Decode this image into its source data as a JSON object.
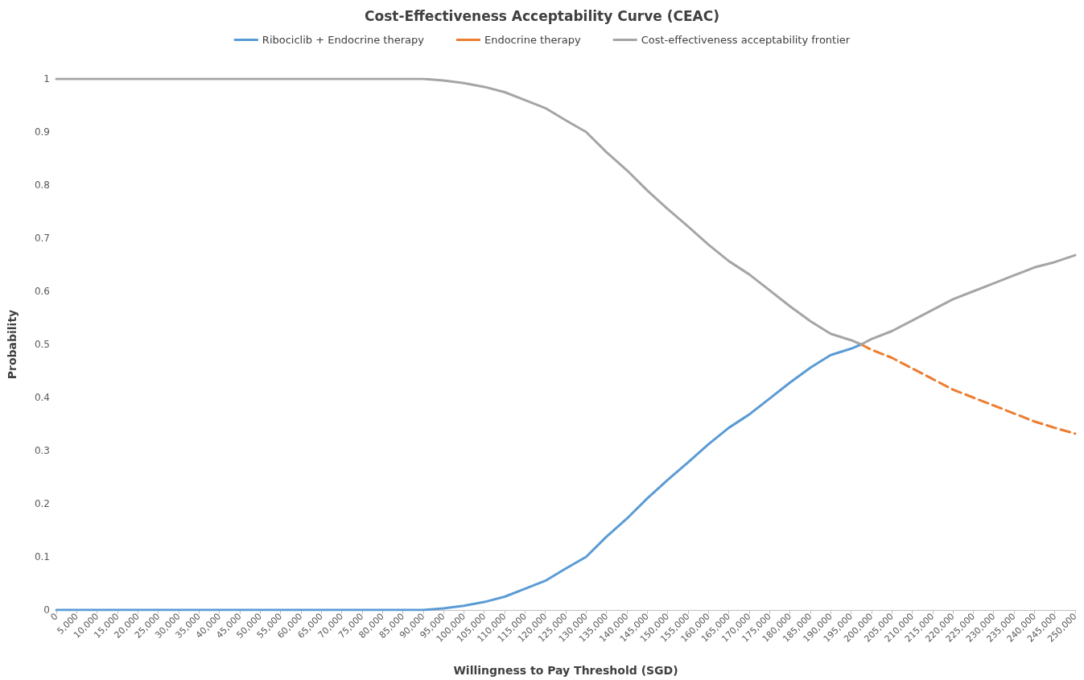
{
  "chart_data": {
    "type": "line",
    "title": "Cost-Effectiveness Acceptability Curve (CEAC)",
    "xlabel": "Willingness to Pay Threshold (SGD)",
    "ylabel": "Probability",
    "x": [
      0,
      5000,
      10000,
      15000,
      20000,
      25000,
      30000,
      35000,
      40000,
      45000,
      50000,
      55000,
      60000,
      65000,
      70000,
      75000,
      80000,
      85000,
      90000,
      95000,
      100000,
      105000,
      110000,
      115000,
      120000,
      125000,
      130000,
      135000,
      140000,
      145000,
      150000,
      155000,
      160000,
      165000,
      170000,
      175000,
      180000,
      185000,
      190000,
      195000,
      197500,
      200000,
      205000,
      210000,
      215000,
      220000,
      225000,
      230000,
      235000,
      240000,
      245000,
      250000
    ],
    "series": [
      {
        "name": "Ribociclib + Endocrine therapy",
        "color": "#5b9bd5",
        "line_style": "solid",
        "values": [
          0,
          0,
          0,
          0,
          0,
          0,
          0,
          0,
          0,
          0,
          0,
          0,
          0,
          0,
          0,
          0,
          0,
          0,
          0,
          0.003,
          0.008,
          0.015,
          0.025,
          0.04,
          0.055,
          0.078,
          0.1,
          0.138,
          0.172,
          0.21,
          0.245,
          0.278,
          0.312,
          0.343,
          0.368,
          0.398,
          0.428,
          0.456,
          0.48,
          0.492,
          0.5,
          null,
          null,
          null,
          null,
          null,
          null,
          null,
          null,
          null,
          null,
          null
        ]
      },
      {
        "name": "Endocrine therapy",
        "color": "#ed7d31",
        "line_style": "dashed",
        "values": [
          null,
          null,
          null,
          null,
          null,
          null,
          null,
          null,
          null,
          null,
          null,
          null,
          null,
          null,
          null,
          null,
          null,
          null,
          null,
          null,
          null,
          null,
          null,
          null,
          null,
          null,
          null,
          null,
          null,
          null,
          null,
          null,
          null,
          null,
          null,
          null,
          null,
          null,
          null,
          null,
          0.5,
          0.49,
          0.475,
          0.455,
          0.435,
          0.415,
          0.4,
          0.385,
          0.37,
          0.355,
          0.343,
          0.332
        ]
      },
      {
        "name": "Cost-effectiveness acceptability frontier",
        "color": "#a5a5a5",
        "line_style": "solid",
        "values": [
          1,
          1,
          1,
          1,
          1,
          1,
          1,
          1,
          1,
          1,
          1,
          1,
          1,
          1,
          1,
          1,
          1,
          1,
          1,
          0.997,
          0.992,
          0.985,
          0.975,
          0.96,
          0.945,
          0.922,
          0.9,
          0.862,
          0.828,
          0.79,
          0.755,
          0.722,
          0.688,
          0.657,
          0.632,
          0.602,
          0.572,
          0.544,
          0.52,
          0.508,
          0.5,
          0.51,
          0.525,
          0.545,
          0.565,
          0.585,
          0.6,
          0.615,
          0.63,
          0.645,
          0.655,
          0.668
        ]
      }
    ],
    "xlim": [
      0,
      250000
    ],
    "xticks": [
      0,
      {
        "value": 5000,
        "label": "5,000"
      },
      {
        "value": 10000,
        "label": "10,000"
      },
      {
        "value": 15000,
        "label": "15,000"
      },
      {
        "value": 20000,
        "label": "20,000"
      },
      {
        "value": 25000,
        "label": "25,000"
      },
      {
        "value": 30000,
        "label": "30,000"
      },
      {
        "value": 35000,
        "label": "35,000"
      },
      {
        "value": 40000,
        "label": "40,000"
      },
      {
        "value": 45000,
        "label": "45,000"
      },
      {
        "value": 50000,
        "label": "50,000"
      },
      {
        "value": 55000,
        "label": "55,000"
      },
      {
        "value": 60000,
        "label": "60,000"
      },
      {
        "value": 65000,
        "label": "65,000"
      },
      {
        "value": 70000,
        "label": "70,000"
      },
      {
        "value": 75000,
        "label": "75,000"
      },
      {
        "value": 80000,
        "label": "80,000"
      },
      {
        "value": 85000,
        "label": "85,000"
      },
      {
        "value": 90000,
        "label": "90,000"
      },
      {
        "value": 95000,
        "label": "95,000"
      },
      {
        "value": 100000,
        "label": "100,000"
      },
      {
        "value": 105000,
        "label": "105,000"
      },
      {
        "value": 110000,
        "label": "110,000"
      },
      {
        "value": 115000,
        "label": "115,000"
      },
      {
        "value": 120000,
        "label": "120,000"
      },
      {
        "value": 125000,
        "label": "125,000"
      },
      {
        "value": 130000,
        "label": "130,000"
      },
      {
        "value": 135000,
        "label": "135,000"
      },
      {
        "value": 140000,
        "label": "140,000"
      },
      {
        "value": 145000,
        "label": "145,000"
      },
      {
        "value": 150000,
        "label": "150,000"
      },
      {
        "value": 155000,
        "label": "155,000"
      },
      {
        "value": 160000,
        "label": "160,000"
      },
      {
        "value": 165000,
        "label": "165,000"
      },
      {
        "value": 170000,
        "label": "170,000"
      },
      {
        "value": 175000,
        "label": "175,000"
      },
      {
        "value": 180000,
        "label": "180,000"
      },
      {
        "value": 185000,
        "label": "185,000"
      },
      {
        "value": 190000,
        "label": "190,000"
      },
      {
        "value": 195000,
        "label": "195,000"
      },
      {
        "value": 200000,
        "label": "200,000"
      },
      {
        "value": 205000,
        "label": "205,000"
      },
      {
        "value": 210000,
        "label": "210,000"
      },
      {
        "value": 215000,
        "label": "215,000"
      },
      {
        "value": 220000,
        "label": "220,000"
      },
      {
        "value": 225000,
        "label": "225,000"
      },
      {
        "value": 230000,
        "label": "230,000"
      },
      {
        "value": 235000,
        "label": "235,000"
      },
      {
        "value": 240000,
        "label": "240,000"
      },
      {
        "value": 245000,
        "label": "245,000"
      },
      {
        "value": 250000,
        "label": "250,000"
      }
    ],
    "ylim": [
      0,
      1
    ],
    "yticks": [
      0,
      0.1,
      0.2,
      0.3,
      0.4,
      0.5,
      0.6,
      0.7,
      0.8,
      0.9,
      1
    ],
    "grid": false,
    "legend": "top",
    "marker": "none"
  }
}
